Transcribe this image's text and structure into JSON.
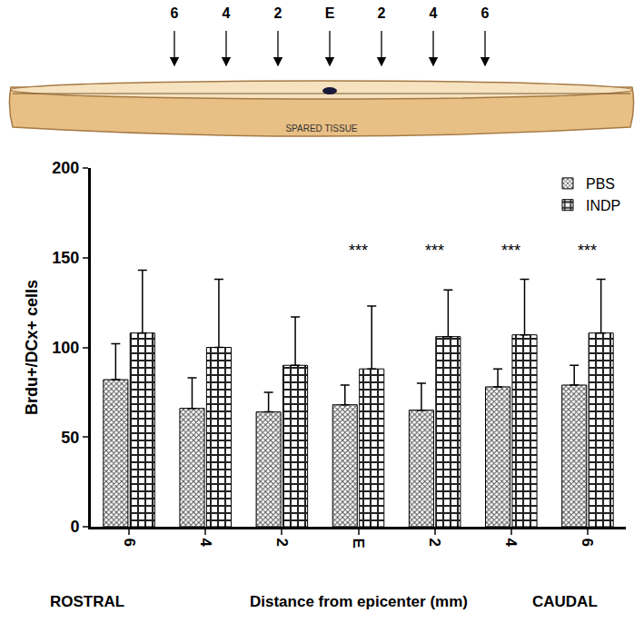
{
  "chart_data": {
    "type": "bar",
    "categories": [
      "6",
      "4",
      "2",
      "E",
      "2",
      "4",
      "6"
    ],
    "x_label": "Distance from epicenter (mm)",
    "x_end_labels": {
      "left": "ROSTRAL",
      "right": "CAUDAL"
    },
    "y_label": "Brdu+/DCx+ cells",
    "series": [
      {
        "name": "PBS",
        "color": "#555555",
        "values": [
          82,
          66,
          64,
          68,
          65,
          78,
          79
        ],
        "errors": [
          20,
          17,
          11,
          11,
          15,
          10,
          11
        ]
      },
      {
        "name": "INDP",
        "color": "#222222",
        "values": [
          108,
          100,
          90,
          88,
          106,
          107,
          108
        ],
        "errors": [
          35,
          38,
          27,
          35,
          26,
          31,
          30
        ]
      }
    ],
    "ylim": [
      0,
      200
    ],
    "yticks": [
      0,
      50,
      100,
      150,
      200
    ],
    "grid": false,
    "legend": "top right",
    "annotations": [
      {
        "text": "***",
        "x": 3
      },
      {
        "text": "***",
        "x": 4
      },
      {
        "text": "***",
        "x": 5
      },
      {
        "text": "***",
        "x": 6
      }
    ]
  },
  "diagram": {
    "labels": [
      "6",
      "4",
      "2",
      "E",
      "2",
      "4",
      "6"
    ],
    "caption": "SPARED TISSUE"
  }
}
